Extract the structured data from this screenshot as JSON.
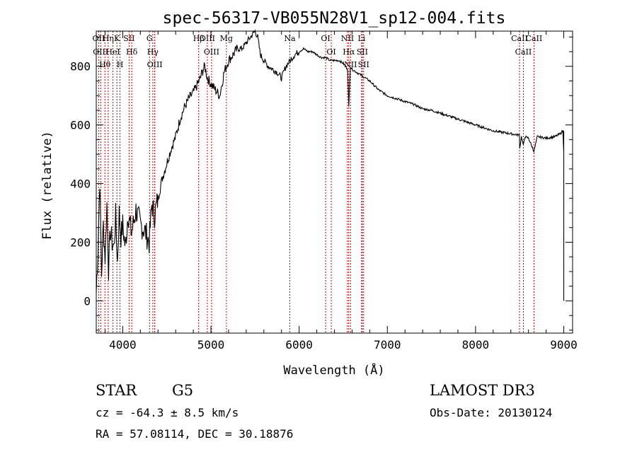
{
  "chart_data": {
    "type": "line",
    "title": "spec-56317-VB055N28V1_sp12-004.fits",
    "xlabel": "Wavelength (Å)",
    "ylabel": "Flux (relative)",
    "xlim": [
      3700,
      9100
    ],
    "ylim": [
      -110,
      920
    ],
    "x_ticks": [
      4000,
      5000,
      6000,
      7000,
      8000,
      9000
    ],
    "y_ticks": [
      0,
      200,
      400,
      600,
      800
    ],
    "grid": false,
    "line_color": "#000000",
    "line_marker_color": "#cc0000",
    "series": [
      {
        "x": [
          3700,
          3720,
          3740,
          3760,
          3780,
          3800,
          3820,
          3840,
          3860,
          3880,
          3900,
          3920,
          3940,
          3960,
          3980,
          4000,
          4030,
          4060,
          4100,
          4150,
          4200,
          4250,
          4300,
          4330,
          4360,
          4400,
          4450,
          4500,
          4550,
          4600,
          4650,
          4700,
          4750,
          4800,
          4850,
          4880,
          4900,
          4930,
          4960,
          5000,
          5050,
          5100,
          5150,
          5200,
          5250,
          5300,
          5350,
          5400,
          5450,
          5500,
          5530,
          5560,
          5600,
          5650,
          5700,
          5750,
          5800,
          5850,
          5900,
          5950,
          6000,
          6050,
          6100,
          6150,
          6200,
          6250,
          6300,
          6350,
          6400,
          6450,
          6500,
          6550,
          6563,
          6580,
          6600,
          6650,
          6700,
          6750,
          6800,
          6900,
          7000,
          7100,
          7200,
          7300,
          7400,
          7500,
          7600,
          7700,
          7800,
          7900,
          8000,
          8100,
          8200,
          8300,
          8400,
          8498,
          8500,
          8520,
          8542,
          8560,
          8600,
          8662,
          8700,
          8800,
          8900,
          8960,
          8990,
          9000
        ],
        "y": [
          30,
          180,
          420,
          90,
          260,
          150,
          330,
          110,
          240,
          200,
          180,
          290,
          130,
          300,
          220,
          260,
          180,
          300,
          230,
          310,
          260,
          240,
          200,
          330,
          290,
          350,
          420,
          470,
          520,
          560,
          620,
          660,
          690,
          710,
          740,
          760,
          780,
          800,
          760,
          740,
          720,
          700,
          780,
          820,
          840,
          860,
          860,
          880,
          900,
          920,
          900,
          840,
          820,
          800,
          790,
          780,
          760,
          800,
          820,
          840,
          850,
          860,
          850,
          850,
          840,
          830,
          830,
          820,
          820,
          820,
          810,
          790,
          660,
          800,
          790,
          780,
          770,
          760,
          750,
          720,
          700,
          690,
          680,
          670,
          655,
          650,
          640,
          630,
          620,
          610,
          600,
          590,
          580,
          575,
          570,
          565,
          520,
          560,
          530,
          560,
          555,
          510,
          560,
          555,
          560,
          570,
          580,
          510
        ]
      }
    ],
    "line_markers": [
      {
        "x": 3727,
        "label": "OII"
      },
      {
        "x": 3750,
        "label": "OIII"
      },
      {
        "x": 3798,
        "label": "Hθ"
      },
      {
        "x": 3835,
        "label": "Hη"
      },
      {
        "x": 3889,
        "label": "HeI"
      },
      {
        "x": 3934,
        "label": "K"
      },
      {
        "x": 3969,
        "label": "H"
      },
      {
        "x": 4072,
        "label": "SII"
      },
      {
        "x": 4102,
        "label": "Hδ"
      },
      {
        "x": 4304,
        "label": "G"
      },
      {
        "x": 4341,
        "label": "Hγ"
      },
      {
        "x": 4363,
        "label": "OIII"
      },
      {
        "x": 4861,
        "label": "Hβ"
      },
      {
        "x": 4959,
        "label": "OIII"
      },
      {
        "x": 5007,
        "label": "OIII"
      },
      {
        "x": 5175,
        "label": "Mg"
      },
      {
        "x": 5894,
        "label": "Na"
      },
      {
        "x": 6300,
        "label": "OI"
      },
      {
        "x": 6364,
        "label": "OI"
      },
      {
        "x": 6548,
        "label": "NII"
      },
      {
        "x": 6563,
        "label": "Hα"
      },
      {
        "x": 6583,
        "label": "NII"
      },
      {
        "x": 6708,
        "label": "Li"
      },
      {
        "x": 6716,
        "label": "SII"
      },
      {
        "x": 6731,
        "label": "SII"
      },
      {
        "x": 8498,
        "label": "CaII"
      },
      {
        "x": 8542,
        "label": "CaII"
      },
      {
        "x": 8662,
        "label": "CaII"
      }
    ]
  },
  "info": {
    "object_class": "STAR",
    "subclass": "G5",
    "redshift": "cz = -64.3 ± 8.5 km/s",
    "coords": "RA =  57.08114, DEC =  30.18876",
    "survey": "LAMOST DR3",
    "obs_date": "Obs-Date: 20130124"
  }
}
